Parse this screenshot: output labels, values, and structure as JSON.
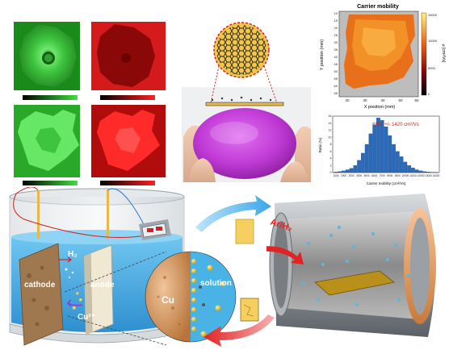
{
  "mapping_panels": {
    "tiles": [
      {
        "id": "green-top",
        "color": "#2fbf2f"
      },
      {
        "id": "red-top",
        "color": "#c81414"
      },
      {
        "id": "green-bottom",
        "color": "#3cd03c"
      },
      {
        "id": "red-bottom",
        "color": "#e01818"
      }
    ],
    "scalebar_green": [
      "#000000",
      "#3de23d"
    ],
    "scalebar_red": [
      "#000000",
      "#ff2020"
    ]
  },
  "mobility_map": {
    "title": "Carrier mobility",
    "xlabel": "X position (mm)",
    "ylabel": "Y position (mm)",
    "colorbar_label": "μ [cm²/Vs]",
    "x_ticks": [
      "20",
      "30",
      "40",
      "50",
      "60"
    ],
    "y_ticks": [
      "10",
      "15",
      "20",
      "25",
      "30",
      "35",
      "40",
      "45",
      "50",
      "55",
      "60",
      "65"
    ],
    "colorbar_ticks": [
      "15000",
      "10000",
      "5000",
      "0"
    ]
  },
  "histogram": {
    "annotation": "6903 +/- 1420 cm²/Vs",
    "ylabel": "Ratio (%)",
    "xlabel": "Carrier mobility (cm²/Vs)",
    "x_ticks": [
      "1000",
      "2000",
      "3000",
      "4000",
      "5000",
      "6000",
      "7000",
      "8000",
      "9000",
      "10000",
      "11000",
      "12000",
      "13000",
      "14000"
    ],
    "y_ticks": [
      "0",
      "2",
      "4",
      "6",
      "8",
      "10",
      "12",
      "14",
      "16"
    ],
    "chart_data": {
      "type": "bar",
      "categories": [
        "1000",
        "1500",
        "2000",
        "2500",
        "3000",
        "3500",
        "4000",
        "4500",
        "5000",
        "5500",
        "6000",
        "6500",
        "7000",
        "7500",
        "8000",
        "8500",
        "9000",
        "9500",
        "10000",
        "10500",
        "11000",
        "11500",
        "12000",
        "12500",
        "13000",
        "13500",
        "14000"
      ],
      "values": [
        0.2,
        0.3,
        0.5,
        0.8,
        1.2,
        2.0,
        3.5,
        5.5,
        8.0,
        11.0,
        13.5,
        15.5,
        14.8,
        13.0,
        10.5,
        8.0,
        6.0,
        4.5,
        3.0,
        2.0,
        1.3,
        0.8,
        0.5,
        0.3,
        0.2,
        0.1,
        0.1
      ],
      "ylim": [
        0,
        16
      ],
      "xlim": [
        1000,
        14000
      ]
    }
  },
  "electrochem": {
    "h2_label": "H₂",
    "cathode_label": "cathode",
    "anode_label": "anode",
    "ion_label": "Cu²⁺",
    "cu_label": "Cu",
    "solution_label": "solution"
  },
  "furnace": {
    "gas_label": "Ar/H₂"
  },
  "colors": {
    "water": "#4ab3e6",
    "arrow_blue": "#3aa6e8",
    "arrow_red": "#e02424",
    "copper": "#e8a05a",
    "foil": "#e8b84a",
    "wafer": "#c03ad6"
  }
}
